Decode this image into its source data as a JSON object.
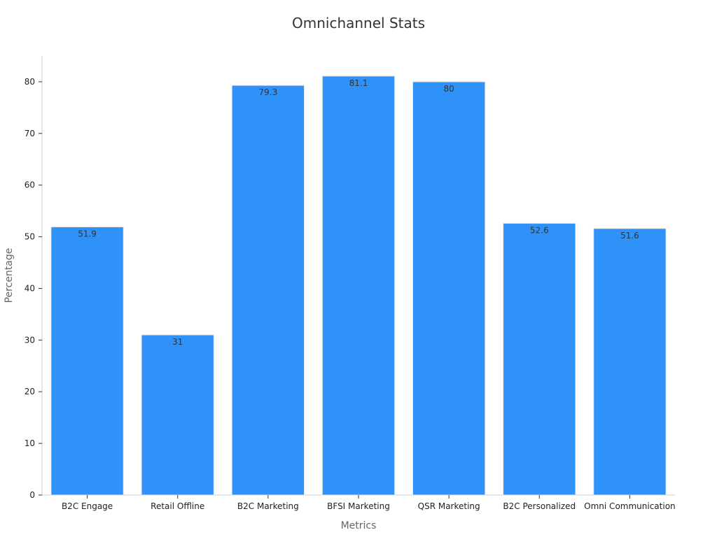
{
  "chart_data": {
    "type": "bar",
    "title": "Omnichannel Stats",
    "xlabel": "Metrics",
    "ylabel": "Percentage",
    "categories": [
      "B2C Engage",
      "Retail Offline",
      "B2C Marketing",
      "BFSI Marketing",
      "QSR Marketing",
      "B2C Personalized",
      "Omni Communication"
    ],
    "values": [
      51.9,
      31,
      79.3,
      81.1,
      80,
      52.6,
      51.6
    ],
    "data_labels": [
      "51.9",
      "31",
      "79.3",
      "81.1",
      "80",
      "52.6",
      "51.6"
    ],
    "ylim": [
      0,
      85
    ],
    "yticks": [
      0,
      10,
      20,
      30,
      40,
      50,
      60,
      70,
      80
    ],
    "bar_color": "#2f92f8",
    "grid": false,
    "legend": "none"
  }
}
